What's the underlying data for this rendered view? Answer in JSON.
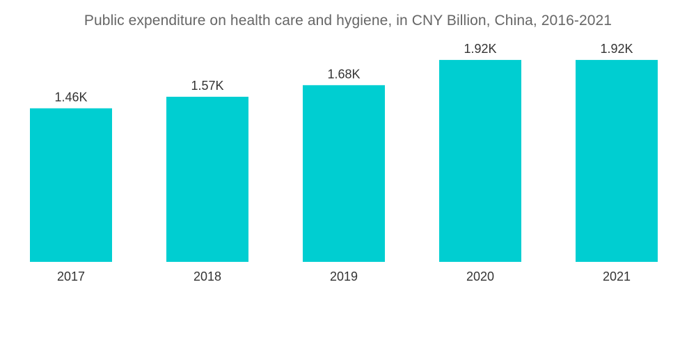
{
  "chart_data": {
    "type": "bar",
    "title": "Public expenditure on health care and hygiene, in CNY Billion, China, 2016-2021",
    "categories": [
      "2017",
      "2018",
      "2019",
      "2020",
      "2021"
    ],
    "values": [
      1460,
      1570,
      1680,
      1920,
      1920
    ],
    "data_labels": [
      "1.46K",
      "1.57K",
      "1.68K",
      "1.92K",
      "1.92K"
    ],
    "xlabel": "",
    "ylabel": "",
    "ylim": [
      0,
      2490
    ],
    "grid": false,
    "legend": "none",
    "colors": {
      "bar": "#00CED1",
      "text": "#333333",
      "title": "#666666"
    }
  }
}
